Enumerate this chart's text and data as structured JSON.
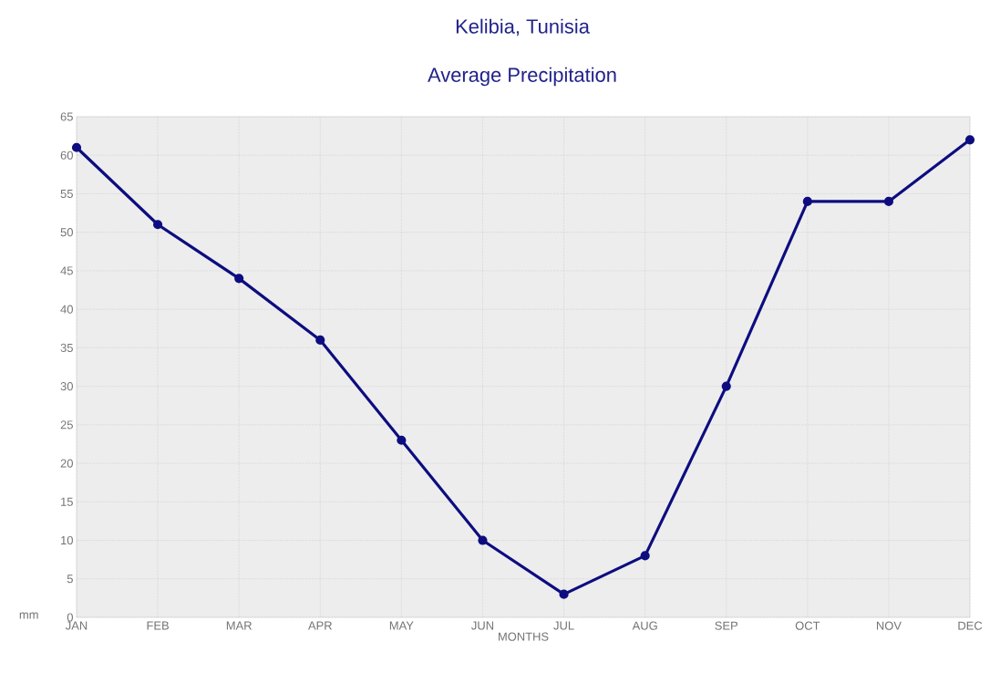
{
  "chart_data": {
    "type": "line",
    "title": "Kelibia, Tunisia",
    "subtitle": "Average Precipitation",
    "xlabel": "MONTHS",
    "ylabel": "mm",
    "categories": [
      "JAN",
      "FEB",
      "MAR",
      "APR",
      "MAY",
      "JUN",
      "JUL",
      "AUG",
      "SEP",
      "OCT",
      "NOV",
      "DEC"
    ],
    "series": [
      {
        "color": "#0d0d80",
        "values": [
          61,
          51,
          44,
          36,
          23,
          10,
          3,
          8,
          30,
          54,
          54,
          62
        ]
      }
    ],
    "ylim": [
      0,
      65
    ],
    "yticks": [
      0,
      5,
      10,
      15,
      20,
      25,
      30,
      35,
      40,
      45,
      50,
      55,
      60,
      65
    ],
    "grid": true,
    "marker": "circle",
    "line_style": "solid"
  }
}
